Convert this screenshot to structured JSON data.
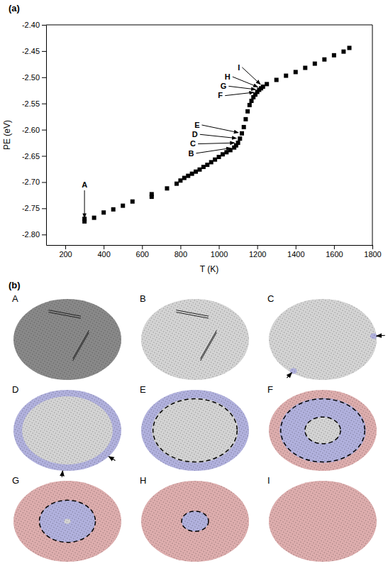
{
  "chart_data": {
    "type": "scatter",
    "panel_label": "(a)",
    "x_label": "T (K)",
    "y_label": "PE (eV)",
    "marker": "square",
    "color": "#000000",
    "xlim": [
      100,
      1800
    ],
    "ylim": [
      -2.82,
      -2.4
    ],
    "xticks": [
      200,
      400,
      600,
      800,
      1000,
      1200,
      1400,
      1600,
      1800
    ],
    "yticks": [
      {
        "value": -2.8,
        "label": "-2.80"
      },
      {
        "value": -2.75,
        "label": "-2.75"
      },
      {
        "value": -2.7,
        "label": "-2.70"
      },
      {
        "value": -2.65,
        "label": "-2.65"
      },
      {
        "value": -2.6,
        "label": "-2.60"
      },
      {
        "value": -2.55,
        "label": "-2.55"
      },
      {
        "value": -2.5,
        "label": "-2.50"
      },
      {
        "value": -2.45,
        "label": "-2.45"
      },
      {
        "value": -2.4,
        "label": "-2.40"
      }
    ],
    "x": [
      300,
      300,
      350,
      400,
      450,
      500,
      550,
      650,
      650,
      730,
      780,
      800,
      820,
      840,
      860,
      880,
      900,
      920,
      940,
      960,
      980,
      1000,
      1020,
      1040,
      1060,
      1080,
      1090,
      1100,
      1110,
      1120,
      1130,
      1140,
      1150,
      1160,
      1170,
      1180,
      1190,
      1200,
      1210,
      1220,
      1230,
      1250,
      1300,
      1350,
      1400,
      1450,
      1500,
      1550,
      1600,
      1650,
      1680
    ],
    "values": [
      -2.775,
      -2.77,
      -2.768,
      -2.758,
      -2.752,
      -2.745,
      -2.737,
      -2.728,
      -2.723,
      -2.712,
      -2.703,
      -2.697,
      -2.692,
      -2.688,
      -2.684,
      -2.68,
      -2.676,
      -2.671,
      -2.667,
      -2.662,
      -2.657,
      -2.652,
      -2.647,
      -2.643,
      -2.639,
      -2.634,
      -2.63,
      -2.625,
      -2.617,
      -2.607,
      -2.595,
      -2.58,
      -2.565,
      -2.553,
      -2.545,
      -2.538,
      -2.533,
      -2.528,
      -2.524,
      -2.521,
      -2.518,
      -2.513,
      -2.505,
      -2.497,
      -2.49,
      -2.482,
      -2.474,
      -2.466,
      -2.458,
      -2.451,
      -2.444
    ],
    "annotations": [
      {
        "text": "A",
        "xy": [
          300,
          -2.775
        ],
        "xytext": [
          300,
          -2.705
        ]
      },
      {
        "text": "B",
        "xy": [
          1080,
          -2.634
        ],
        "xytext": [
          870,
          -2.645
        ]
      },
      {
        "text": "C",
        "xy": [
          1100,
          -2.625
        ],
        "xytext": [
          880,
          -2.627
        ]
      },
      {
        "text": "D",
        "xy": [
          1110,
          -2.617
        ],
        "xytext": [
          890,
          -2.609
        ]
      },
      {
        "text": "E",
        "xy": [
          1120,
          -2.607
        ],
        "xytext": [
          900,
          -2.591
        ]
      },
      {
        "text": "F",
        "xy": [
          1200,
          -2.528
        ],
        "xytext": [
          1020,
          -2.535
        ]
      },
      {
        "text": "G",
        "xy": [
          1210,
          -2.524
        ],
        "xytext": [
          1040,
          -2.517
        ]
      },
      {
        "text": "H",
        "xy": [
          1220,
          -2.521
        ],
        "xytext": [
          1060,
          -2.499
        ]
      },
      {
        "text": "I",
        "xy": [
          1230,
          -2.518
        ],
        "xytext": [
          1110,
          -2.481
        ]
      }
    ]
  },
  "snapshots": {
    "panel_label": "(b)",
    "items": [
      {
        "label": "A",
        "defects": true,
        "layers": [
          {
            "color": "#8e8e8e",
            "r": 1
          }
        ]
      },
      {
        "label": "B",
        "defects": true,
        "layers": [
          {
            "color": "#dcdcdc",
            "r": 1
          }
        ]
      },
      {
        "label": "C",
        "layers": [
          {
            "color": "#dcdcdc",
            "r": 1
          }
        ],
        "patches": [
          125,
          355
        ]
      },
      {
        "label": "D",
        "layers": [
          {
            "color": "#b8b8e6",
            "r": 1
          },
          {
            "color": "#dcdcdc",
            "r": 0.84
          }
        ],
        "arrows": [
          95,
          40
        ]
      },
      {
        "label": "E",
        "layers": [
          {
            "color": "#b8b8e6",
            "r": 1
          },
          {
            "color": "#dcdcdc",
            "r": 0.8
          }
        ],
        "boundaries": [
          0.78
        ]
      },
      {
        "label": "F",
        "layers": [
          {
            "color": "#e6b4b4",
            "r": 1
          },
          {
            "color": "#b8b8e6",
            "r": 0.8
          },
          {
            "color": "#dcdcdc",
            "r": 0.33
          }
        ],
        "boundaries": [
          0.78,
          0.33
        ]
      },
      {
        "label": "G",
        "layers": [
          {
            "color": "#e6b4b4",
            "r": 1
          },
          {
            "color": "#b8b8e6",
            "r": 0.52
          },
          {
            "color": "#dcdcdc",
            "r": 0.06
          }
        ],
        "boundaries": [
          0.52
        ]
      },
      {
        "label": "H",
        "layers": [
          {
            "color": "#e6b4b4",
            "r": 1
          },
          {
            "color": "#b8b8e6",
            "r": 0.25
          }
        ],
        "boundaries": [
          0.25
        ]
      },
      {
        "label": "I",
        "layers": [
          {
            "color": "#e6b4b4",
            "r": 1
          }
        ]
      }
    ]
  }
}
